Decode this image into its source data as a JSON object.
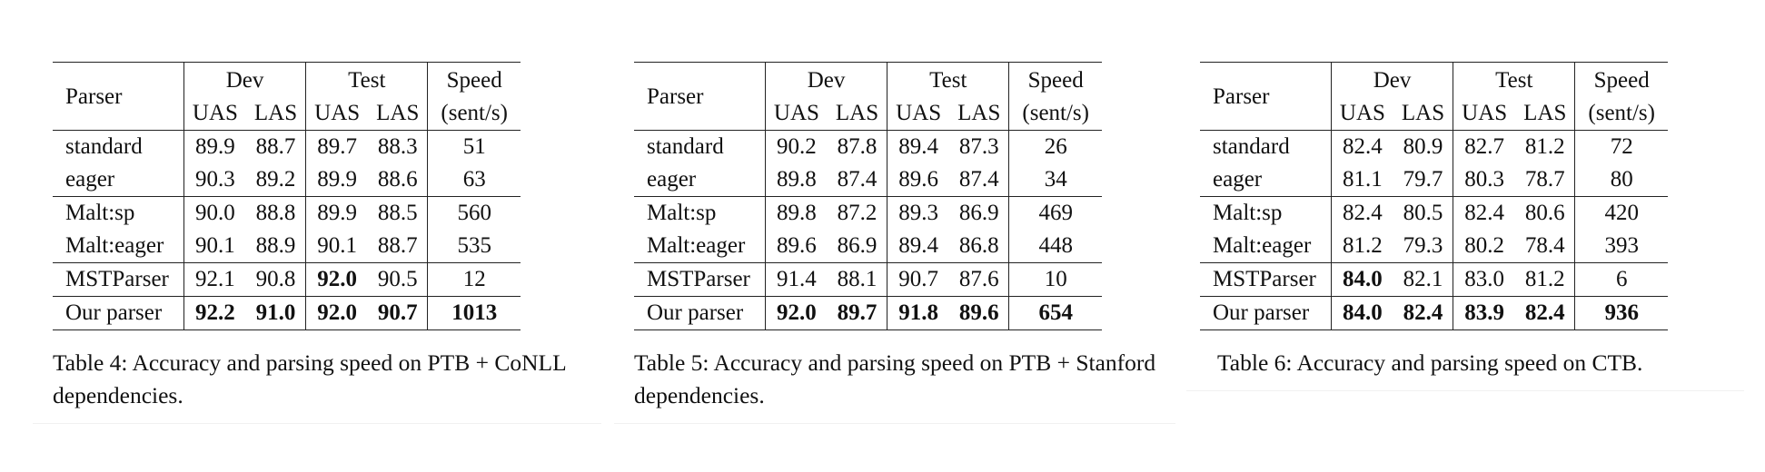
{
  "header": {
    "parser": "Parser",
    "dev": "Dev",
    "test": "Test",
    "speed": "Speed",
    "uas": "UAS",
    "las": "LAS",
    "speed_unit": "(sent/s)"
  },
  "tables": [
    {
      "caption": "Table 4:  Accuracy and parsing speed on PTB + CoNLL dependencies.",
      "rows": [
        {
          "parser": "standard",
          "cells": [
            "89.9",
            "88.7",
            "89.7",
            "88.3",
            "51"
          ],
          "bold": [
            false,
            false,
            false,
            false,
            false
          ]
        },
        {
          "parser": "eager",
          "cells": [
            "90.3",
            "89.2",
            "89.9",
            "88.6",
            "63"
          ],
          "bold": [
            false,
            false,
            false,
            false,
            false
          ]
        },
        {
          "parser": "Malt:sp",
          "cells": [
            "90.0",
            "88.8",
            "89.9",
            "88.5",
            "560"
          ],
          "bold": [
            false,
            false,
            false,
            false,
            false
          ]
        },
        {
          "parser": "Malt:eager",
          "cells": [
            "90.1",
            "88.9",
            "90.1",
            "88.7",
            "535"
          ],
          "bold": [
            false,
            false,
            false,
            false,
            false
          ]
        },
        {
          "parser": "MSTParser",
          "cells": [
            "92.1",
            "90.8",
            "92.0",
            "90.5",
            "12"
          ],
          "bold": [
            false,
            false,
            true,
            false,
            false
          ]
        },
        {
          "parser": "Our parser",
          "cells": [
            "92.2",
            "91.0",
            "92.0",
            "90.7",
            "1013"
          ],
          "bold": [
            true,
            true,
            true,
            true,
            true
          ]
        }
      ]
    },
    {
      "caption": "Table 5:  Accuracy and parsing speed on PTB + Stanford dependencies.",
      "rows": [
        {
          "parser": "standard",
          "cells": [
            "90.2",
            "87.8",
            "89.4",
            "87.3",
            "26"
          ],
          "bold": [
            false,
            false,
            false,
            false,
            false
          ]
        },
        {
          "parser": "eager",
          "cells": [
            "89.8",
            "87.4",
            "89.6",
            "87.4",
            "34"
          ],
          "bold": [
            false,
            false,
            false,
            false,
            false
          ]
        },
        {
          "parser": "Malt:sp",
          "cells": [
            "89.8",
            "87.2",
            "89.3",
            "86.9",
            "469"
          ],
          "bold": [
            false,
            false,
            false,
            false,
            false
          ]
        },
        {
          "parser": "Malt:eager",
          "cells": [
            "89.6",
            "86.9",
            "89.4",
            "86.8",
            "448"
          ],
          "bold": [
            false,
            false,
            false,
            false,
            false
          ]
        },
        {
          "parser": "MSTParser",
          "cells": [
            "91.4",
            "88.1",
            "90.7",
            "87.6",
            "10"
          ],
          "bold": [
            false,
            false,
            false,
            false,
            false
          ]
        },
        {
          "parser": "Our parser",
          "cells": [
            "92.0",
            "89.7",
            "91.8",
            "89.6",
            "654"
          ],
          "bold": [
            true,
            true,
            true,
            true,
            true
          ]
        }
      ]
    },
    {
      "caption": "Table 6: Accuracy and parsing speed on CTB.",
      "rows": [
        {
          "parser": "standard",
          "cells": [
            "82.4",
            "80.9",
            "82.7",
            "81.2",
            "72"
          ],
          "bold": [
            false,
            false,
            false,
            false,
            false
          ]
        },
        {
          "parser": "eager",
          "cells": [
            "81.1",
            "79.7",
            "80.3",
            "78.7",
            "80"
          ],
          "bold": [
            false,
            false,
            false,
            false,
            false
          ]
        },
        {
          "parser": "Malt:sp",
          "cells": [
            "82.4",
            "80.5",
            "82.4",
            "80.6",
            "420"
          ],
          "bold": [
            false,
            false,
            false,
            false,
            false
          ]
        },
        {
          "parser": "Malt:eager",
          "cells": [
            "81.2",
            "79.3",
            "80.2",
            "78.4",
            "393"
          ],
          "bold": [
            false,
            false,
            false,
            false,
            false
          ]
        },
        {
          "parser": "MSTParser",
          "cells": [
            "84.0",
            "82.1",
            "83.0",
            "81.2",
            "6"
          ],
          "bold": [
            true,
            false,
            false,
            false,
            false
          ]
        },
        {
          "parser": "Our parser",
          "cells": [
            "84.0",
            "82.4",
            "83.9",
            "82.4",
            "936"
          ],
          "bold": [
            true,
            true,
            true,
            true,
            true
          ]
        }
      ]
    }
  ]
}
